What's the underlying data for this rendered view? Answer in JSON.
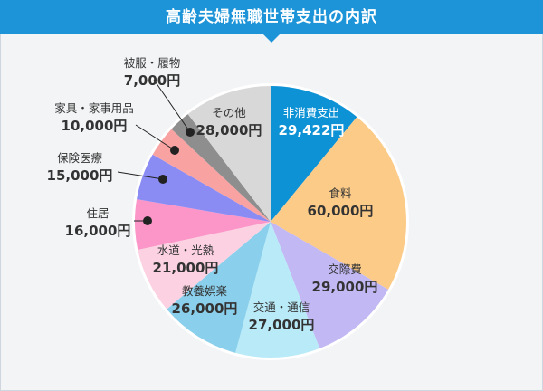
{
  "header": {
    "title": "高齢夫婦無職世帯支出の内訳"
  },
  "chart_data": {
    "type": "pie",
    "title": "高齢夫婦無職世帯支出の内訳",
    "unit": "円",
    "slices": [
      {
        "name": "非消費支出",
        "value": 29422,
        "label": "29,422円",
        "color": "#0e92d6"
      },
      {
        "name": "食料",
        "value": 60000,
        "label": "60,000円",
        "color": "#fccb88"
      },
      {
        "name": "交際費",
        "value": 29000,
        "label": "29,000円",
        "color": "#c1b8f4"
      },
      {
        "name": "交通・通信",
        "value": 27000,
        "label": "27,000円",
        "color": "#b8eaf8"
      },
      {
        "name": "教養娯楽",
        "value": 26000,
        "label": "26,000円",
        "color": "#8ad0ec"
      },
      {
        "name": "水道・光熱",
        "value": 21000,
        "label": "21,000円",
        "color": "#fcd2e2"
      },
      {
        "name": "住居",
        "value": 16000,
        "label": "16,000円",
        "color": "#fc96c8"
      },
      {
        "name": "保険医療",
        "value": 15000,
        "label": "15,000円",
        "color": "#8a8cf4"
      },
      {
        "name": "家具・家事用品",
        "value": 10000,
        "label": "10,000円",
        "color": "#f8a2a2"
      },
      {
        "name": "被服・履物",
        "value": 7000,
        "label": "7,000円",
        "color": "#8e8e8e"
      },
      {
        "name": "その他",
        "value": 28000,
        "label": "28,000円",
        "color": "#d8d8d8"
      }
    ]
  }
}
